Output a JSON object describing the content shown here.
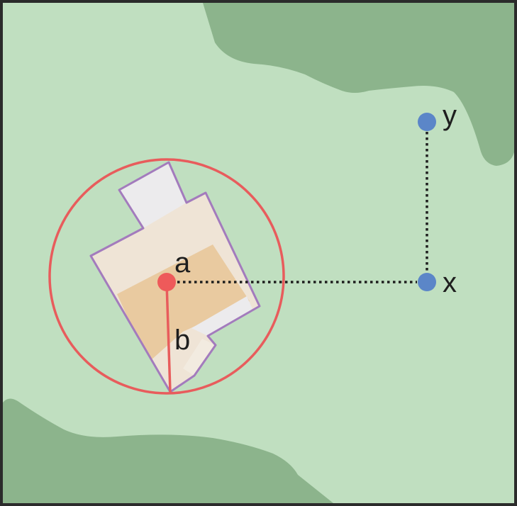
{
  "labels": {
    "center": "a",
    "radius": "b",
    "point_right": "x",
    "point_top": "y"
  },
  "colors": {
    "frame": "#2b2b2b",
    "background": "#c0dfc0",
    "dark_green": "#8cb48c",
    "circle": "#e85c5c",
    "center_dot": "#ee5a5a",
    "building_outline": "#a37bbd",
    "building_fill": "#efe4d6",
    "building_core": "#e8c596",
    "building_light": "#ecebed",
    "point_dots": "#5b86c8",
    "dotted_line": "#1e1e1e",
    "text": "#1e1e1e"
  },
  "icons": [
    "circle-marker",
    "dot-marker"
  ]
}
